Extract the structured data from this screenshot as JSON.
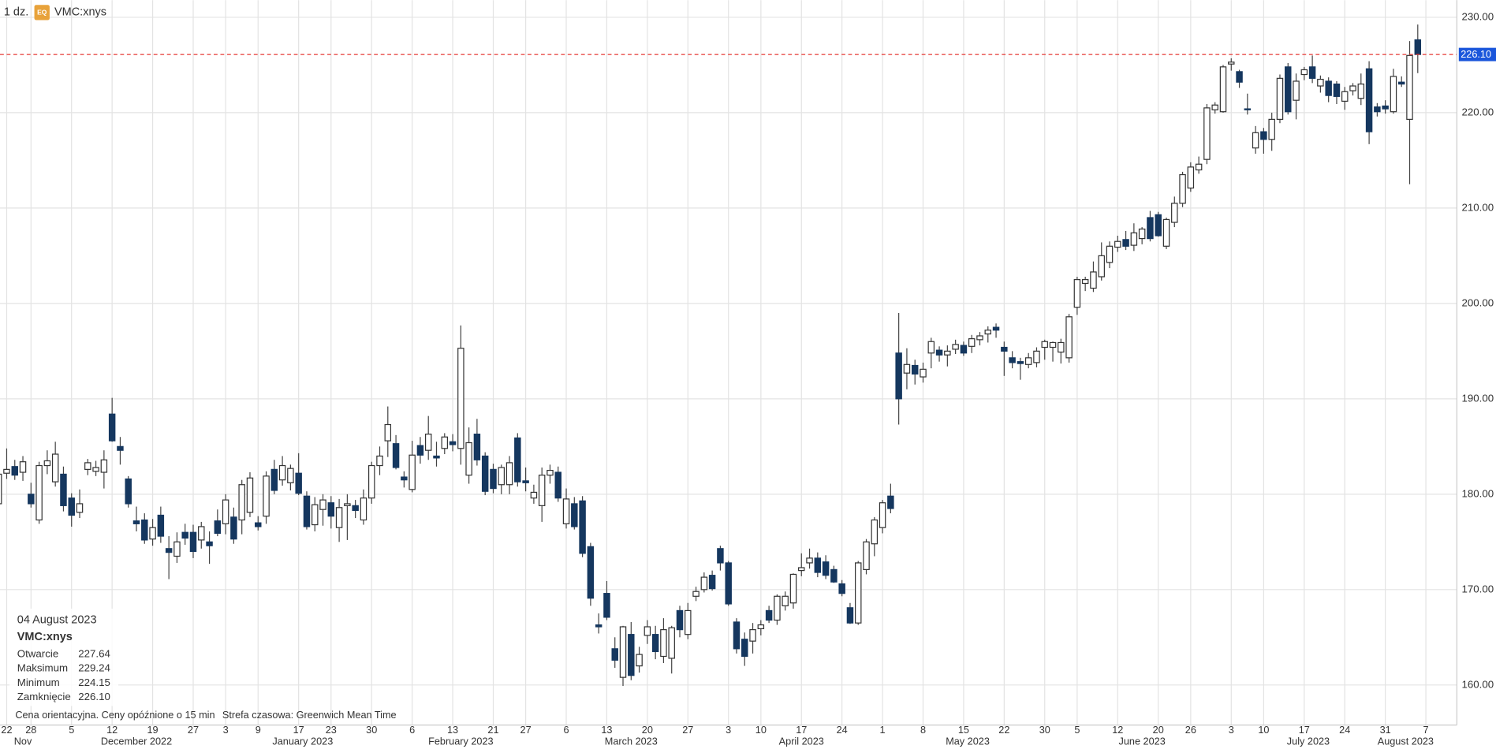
{
  "header": {
    "interval": "1 dz.",
    "badge": "EQ",
    "symbol": "VMC:xnys"
  },
  "info": {
    "date": "04 August 2023",
    "symbol": "VMC:xnys",
    "rows": [
      [
        "Otwarcie",
        "227.64"
      ],
      [
        "Maksimum",
        "229.24"
      ],
      [
        "Minimum",
        "224.15"
      ],
      [
        "Zamknięcie",
        "226.10"
      ]
    ]
  },
  "notes": [
    "Cena orientacyjna. Ceny opóźnione o 15 min",
    "Strefa czasowa: Greenwich Mean Time"
  ],
  "chart_data": {
    "type": "candlestick",
    "up_color": "#ffffff",
    "down_color": "#15375f",
    "grid": true,
    "ylim": [
      155.8,
      231.8
    ],
    "yticks": [
      {
        "value": 160,
        "label": "160.00"
      },
      {
        "value": 170,
        "label": "170.00"
      },
      {
        "value": 180,
        "label": "180.00"
      },
      {
        "value": 190,
        "label": "190.00"
      },
      {
        "value": 200,
        "label": "200.00"
      },
      {
        "value": 210,
        "label": "210.00"
      },
      {
        "value": 220,
        "label": "220.00"
      },
      {
        "value": 230,
        "label": "230.00"
      }
    ],
    "last_price": {
      "value": 226.1,
      "label": "226.10"
    },
    "xticks": [
      {
        "value": "2022-11-22",
        "label": "22"
      },
      {
        "value": "2022-11-28",
        "label": "28"
      },
      {
        "value": "2022-12-05",
        "label": "5"
      },
      {
        "value": "2022-12-12",
        "label": "12"
      },
      {
        "value": "2022-12-19",
        "label": "19"
      },
      {
        "value": "2022-12-27",
        "label": "27"
      },
      {
        "value": "2023-01-03",
        "label": "3"
      },
      {
        "value": "2023-01-09",
        "label": "9"
      },
      {
        "value": "2023-01-17",
        "label": "17"
      },
      {
        "value": "2023-01-23",
        "label": "23"
      },
      {
        "value": "2023-01-30",
        "label": "30"
      },
      {
        "value": "2023-02-06",
        "label": "6"
      },
      {
        "value": "2023-02-13",
        "label": "13"
      },
      {
        "value": "2023-02-21",
        "label": "21"
      },
      {
        "value": "2023-02-27",
        "label": "27"
      },
      {
        "value": "2023-03-06",
        "label": "6"
      },
      {
        "value": "2023-03-13",
        "label": "13"
      },
      {
        "value": "2023-03-20",
        "label": "20"
      },
      {
        "value": "2023-03-27",
        "label": "27"
      },
      {
        "value": "2023-04-03",
        "label": "3"
      },
      {
        "value": "2023-04-10",
        "label": "10"
      },
      {
        "value": "2023-04-17",
        "label": "17"
      },
      {
        "value": "2023-04-24",
        "label": "24"
      },
      {
        "value": "2023-05-01",
        "label": "1"
      },
      {
        "value": "2023-05-08",
        "label": "8"
      },
      {
        "value": "2023-05-15",
        "label": "15"
      },
      {
        "value": "2023-05-22",
        "label": "22"
      },
      {
        "value": "2023-05-30",
        "label": "30"
      },
      {
        "value": "2023-06-05",
        "label": "5"
      },
      {
        "value": "2023-06-12",
        "label": "12"
      },
      {
        "value": "2023-06-20",
        "label": "20"
      },
      {
        "value": "2023-06-26",
        "label": "26"
      },
      {
        "value": "2023-07-03",
        "label": "3"
      },
      {
        "value": "2023-07-10",
        "label": "10"
      },
      {
        "value": "2023-07-17",
        "label": "17"
      },
      {
        "value": "2023-07-24",
        "label": "24"
      },
      {
        "value": "2023-07-31",
        "label": "31"
      },
      {
        "value": "2023-08-07",
        "label": "7"
      }
    ],
    "month_labels": [
      {
        "value": "2022-11",
        "label": "Nov"
      },
      {
        "value": "2022-12",
        "label": "December 2022"
      },
      {
        "value": "2023-01",
        "label": "January 2023"
      },
      {
        "value": "2023-02",
        "label": "February 2023"
      },
      {
        "value": "2023-03",
        "label": "March 2023"
      },
      {
        "value": "2023-04",
        "label": "April 2023"
      },
      {
        "value": "2023-05",
        "label": "May 2023"
      },
      {
        "value": "2023-06",
        "label": "June 2023"
      },
      {
        "value": "2023-07",
        "label": "July 2023"
      },
      {
        "value": "2023-08",
        "label": "August 2023"
      }
    ],
    "x": [
      "2022-11-21",
      "2022-11-22",
      "2022-11-23",
      "2022-11-25",
      "2022-11-28",
      "2022-11-29",
      "2022-11-30",
      "2022-12-01",
      "2022-12-02",
      "2022-12-05",
      "2022-12-06",
      "2022-12-07",
      "2022-12-08",
      "2022-12-09",
      "2022-12-12",
      "2022-12-13",
      "2022-12-14",
      "2022-12-15",
      "2022-12-16",
      "2022-12-19",
      "2022-12-20",
      "2022-12-21",
      "2022-12-22",
      "2022-12-23",
      "2022-12-27",
      "2022-12-28",
      "2022-12-29",
      "2022-12-30",
      "2023-01-03",
      "2023-01-04",
      "2023-01-05",
      "2023-01-06",
      "2023-01-09",
      "2023-01-10",
      "2023-01-11",
      "2023-01-12",
      "2023-01-13",
      "2023-01-17",
      "2023-01-18",
      "2023-01-19",
      "2023-01-20",
      "2023-01-23",
      "2023-01-24",
      "2023-01-25",
      "2023-01-26",
      "2023-01-27",
      "2023-01-30",
      "2023-01-31",
      "2023-02-01",
      "2023-02-02",
      "2023-02-03",
      "2023-02-06",
      "2023-02-07",
      "2023-02-08",
      "2023-02-09",
      "2023-02-10",
      "2023-02-13",
      "2023-02-14",
      "2023-02-15",
      "2023-02-16",
      "2023-02-17",
      "2023-02-21",
      "2023-02-22",
      "2023-02-23",
      "2023-02-24",
      "2023-02-27",
      "2023-02-28",
      "2023-03-01",
      "2023-03-02",
      "2023-03-03",
      "2023-03-06",
      "2023-03-07",
      "2023-03-08",
      "2023-03-09",
      "2023-03-10",
      "2023-03-13",
      "2023-03-14",
      "2023-03-15",
      "2023-03-16",
      "2023-03-17",
      "2023-03-20",
      "2023-03-21",
      "2023-03-22",
      "2023-03-23",
      "2023-03-24",
      "2023-03-27",
      "2023-03-28",
      "2023-03-29",
      "2023-03-30",
      "2023-03-31",
      "2023-04-03",
      "2023-04-04",
      "2023-04-05",
      "2023-04-06",
      "2023-04-10",
      "2023-04-11",
      "2023-04-12",
      "2023-04-13",
      "2023-04-14",
      "2023-04-17",
      "2023-04-18",
      "2023-04-19",
      "2023-04-20",
      "2023-04-21",
      "2023-04-24",
      "2023-04-25",
      "2023-04-26",
      "2023-04-27",
      "2023-04-28",
      "2023-05-01",
      "2023-05-02",
      "2023-05-03",
      "2023-05-04",
      "2023-05-05",
      "2023-05-08",
      "2023-05-09",
      "2023-05-10",
      "2023-05-11",
      "2023-05-12",
      "2023-05-15",
      "2023-05-16",
      "2023-05-17",
      "2023-05-18",
      "2023-05-19",
      "2023-05-22",
      "2023-05-23",
      "2023-05-24",
      "2023-05-25",
      "2023-05-26",
      "2023-05-30",
      "2023-05-31",
      "2023-06-01",
      "2023-06-02",
      "2023-06-05",
      "2023-06-06",
      "2023-06-07",
      "2023-06-08",
      "2023-06-09",
      "2023-06-12",
      "2023-06-13",
      "2023-06-14",
      "2023-06-15",
      "2023-06-16",
      "2023-06-20",
      "2023-06-21",
      "2023-06-22",
      "2023-06-23",
      "2023-06-26",
      "2023-06-27",
      "2023-06-28",
      "2023-06-29",
      "2023-06-30",
      "2023-07-03",
      "2023-07-05",
      "2023-07-06",
      "2023-07-07",
      "2023-07-10",
      "2023-07-11",
      "2023-07-12",
      "2023-07-13",
      "2023-07-14",
      "2023-07-17",
      "2023-07-18",
      "2023-07-19",
      "2023-07-20",
      "2023-07-21",
      "2023-07-24",
      "2023-07-25",
      "2023-07-26",
      "2023-07-27",
      "2023-07-28",
      "2023-07-31",
      "2023-08-01",
      "2023-08-02",
      "2023-08-03",
      "2023-08-04"
    ],
    "open": [
      179.0,
      182.2,
      182.9,
      182.3,
      180.0,
      177.3,
      183.0,
      181.3,
      182.1,
      179.6,
      178.1,
      182.6,
      182.4,
      182.3,
      188.4,
      185.0,
      181.6,
      177.2,
      177.3,
      175.3,
      177.8,
      174.3,
      173.5,
      176.0,
      176.0,
      175.2,
      175.0,
      177.2,
      176.9,
      177.6,
      177.3,
      178.1,
      177.0,
      177.7,
      182.6,
      181.5,
      181.2,
      182.2,
      179.8,
      176.8,
      178.4,
      179.1,
      176.5,
      178.8,
      178.8,
      177.3,
      179.6,
      183.0,
      185.6,
      185.3,
      181.8,
      180.5,
      185.1,
      184.6,
      184.0,
      184.8,
      185.5,
      184.8,
      182.0,
      186.3,
      184.0,
      182.6,
      181.0,
      181.0,
      185.9,
      181.4,
      179.6,
      178.8,
      182.0,
      182.3,
      176.9,
      179.0,
      179.3,
      174.5,
      166.3,
      169.6,
      163.8,
      160.8,
      165.3,
      162.0,
      165.2,
      165.3,
      163.0,
      162.8,
      167.8,
      165.3,
      169.3,
      170.0,
      171.5,
      174.3,
      172.8,
      166.6,
      164.8,
      164.6,
      165.9,
      167.8,
      166.8,
      168.3,
      168.6,
      172.0,
      172.8,
      173.3,
      172.9,
      172.1,
      170.6,
      168.1,
      166.5,
      172.1,
      174.8,
      176.5,
      179.8,
      194.8,
      192.7,
      193.5,
      192.3,
      194.8,
      195.1,
      194.6,
      195.2,
      195.6,
      195.5,
      196.2,
      196.8,
      197.5,
      195.4,
      194.3,
      193.9,
      193.6,
      193.8,
      195.4,
      195.4,
      194.9,
      194.3,
      199.6,
      202.1,
      201.6,
      202.8,
      204.3,
      205.9,
      206.7,
      206.1,
      206.8,
      209.0,
      209.3,
      206.0,
      208.5,
      210.5,
      212.1,
      214.0,
      215.1,
      220.3,
      220.1,
      225.1,
      224.3,
      220.4,
      216.3,
      218.0,
      217.2,
      219.3,
      224.8,
      221.3,
      224.0,
      224.8,
      222.8,
      223.3,
      223.0,
      221.2,
      222.3,
      221.5,
      224.6,
      220.6,
      220.7,
      220.1,
      223.2,
      219.3,
      227.64
    ],
    "high": [
      183.0,
      184.8,
      183.6,
      184.0,
      181.2,
      183.4,
      184.6,
      185.5,
      182.9,
      180.1,
      180.5,
      183.7,
      183.5,
      184.6,
      190.1,
      186.0,
      181.9,
      178.7,
      178.0,
      177.4,
      178.7,
      175.6,
      176.0,
      176.9,
      176.8,
      177.1,
      176.1,
      178.4,
      180.0,
      178.6,
      181.5,
      182.3,
      177.7,
      182.4,
      183.6,
      184.0,
      183.1,
      184.3,
      180.3,
      179.7,
      180.0,
      179.8,
      179.5,
      180.0,
      179.4,
      180.5,
      183.4,
      185.0,
      189.2,
      186.2,
      182.4,
      185.6,
      186.0,
      188.2,
      185.5,
      186.4,
      186.3,
      197.7,
      187.0,
      187.9,
      184.4,
      183.2,
      183.1,
      184.0,
      186.4,
      182.8,
      181.0,
      182.8,
      183.1,
      182.9,
      180.6,
      179.7,
      179.8,
      174.9,
      167.5,
      170.9,
      165.0,
      166.2,
      166.6,
      164.0,
      166.8,
      166.2,
      167.0,
      166.2,
      168.3,
      168.6,
      170.3,
      171.8,
      172.0,
      174.6,
      173.0,
      167.0,
      165.5,
      166.5,
      166.8,
      168.3,
      169.5,
      169.8,
      171.7,
      173.8,
      174.3,
      173.9,
      173.6,
      172.5,
      171.0,
      168.6,
      173.0,
      175.3,
      177.6,
      179.4,
      181.1,
      199.0,
      195.3,
      194.1,
      193.8,
      196.4,
      195.5,
      195.6,
      196.2,
      196.0,
      196.7,
      197.0,
      197.6,
      197.9,
      196.0,
      195.0,
      194.3,
      194.8,
      195.4,
      196.2,
      196.0,
      196.3,
      198.9,
      202.8,
      202.8,
      204.4,
      206.4,
      206.5,
      207.1,
      207.6,
      208.4,
      208.0,
      209.7,
      209.6,
      209.0,
      211.2,
      213.8,
      214.8,
      215.4,
      220.9,
      221.1,
      225.0,
      225.7,
      224.5,
      222.0,
      218.6,
      218.4,
      220.0,
      224.0,
      225.2,
      224.1,
      224.8,
      226.0,
      223.9,
      223.7,
      223.3,
      222.7,
      223.1,
      224.1,
      225.4,
      221.0,
      221.3,
      224.6,
      223.8,
      227.5,
      229.24
    ],
    "low": [
      178.3,
      181.6,
      181.5,
      181.4,
      178.6,
      176.9,
      182.1,
      180.8,
      178.2,
      176.6,
      177.5,
      182.0,
      181.9,
      180.6,
      185.5,
      183.1,
      178.6,
      176.1,
      174.8,
      174.6,
      174.9,
      171.1,
      172.8,
      174.7,
      173.3,
      174.3,
      172.7,
      175.6,
      175.8,
      174.8,
      175.8,
      177.6,
      176.2,
      176.9,
      180.0,
      180.9,
      180.4,
      179.9,
      176.3,
      176.1,
      176.7,
      176.4,
      175.0,
      175.2,
      177.5,
      176.8,
      179.0,
      182.0,
      183.9,
      182.6,
      180.7,
      180.2,
      183.2,
      183.6,
      182.9,
      184.2,
      184.5,
      183.1,
      181.1,
      183.0,
      179.9,
      180.1,
      180.0,
      180.0,
      180.8,
      180.3,
      179.0,
      177.1,
      181.1,
      179.2,
      176.4,
      176.3,
      173.4,
      168.3,
      165.4,
      166.8,
      161.8,
      159.9,
      160.5,
      161.3,
      164.3,
      162.7,
      162.3,
      161.2,
      165.0,
      164.8,
      168.8,
      169.7,
      169.9,
      172.0,
      168.3,
      163.3,
      162.0,
      163.3,
      165.2,
      166.5,
      166.3,
      167.8,
      168.0,
      171.4,
      172.2,
      171.3,
      171.1,
      170.7,
      169.3,
      166.4,
      166.3,
      171.6,
      173.5,
      175.9,
      178.0,
      187.3,
      191.0,
      191.5,
      191.7,
      193.2,
      193.9,
      193.4,
      194.7,
      194.5,
      194.8,
      195.6,
      195.9,
      196.4,
      192.4,
      193.2,
      192.0,
      193.2,
      193.3,
      194.1,
      193.9,
      193.7,
      193.8,
      198.8,
      201.3,
      201.2,
      202.4,
      203.7,
      205.4,
      205.6,
      205.5,
      206.2,
      206.5,
      207.0,
      205.7,
      208.0,
      210.1,
      211.7,
      213.6,
      214.6,
      219.9,
      220.0,
      224.4,
      222.6,
      219.8,
      215.7,
      215.7,
      216.0,
      218.9,
      219.8,
      219.3,
      223.4,
      223.1,
      222.1,
      221.1,
      220.9,
      220.3,
      221.8,
      220.8,
      216.7,
      219.6,
      219.9,
      219.9,
      222.7,
      212.5,
      224.15
    ],
    "close": [
      182.1,
      182.6,
      182.0,
      183.4,
      179.0,
      183.0,
      183.5,
      184.2,
      178.8,
      177.8,
      179.0,
      183.3,
      182.8,
      183.6,
      185.6,
      184.6,
      179.0,
      176.9,
      175.2,
      176.5,
      175.6,
      173.9,
      175.0,
      175.4,
      174.0,
      176.6,
      174.6,
      175.9,
      179.4,
      175.3,
      181.0,
      181.7,
      176.6,
      181.9,
      180.4,
      183.0,
      182.7,
      180.1,
      176.6,
      178.9,
      179.4,
      177.7,
      178.6,
      179.0,
      178.3,
      179.6,
      183.0,
      184.0,
      187.3,
      182.8,
      181.5,
      184.1,
      184.1,
      186.3,
      183.8,
      186.0,
      185.2,
      195.3,
      185.4,
      183.6,
      180.3,
      180.6,
      182.8,
      183.3,
      181.3,
      181.2,
      180.2,
      182.0,
      182.5,
      179.6,
      179.5,
      176.6,
      173.8,
      169.1,
      166.1,
      167.1,
      162.6,
      166.1,
      161.0,
      163.2,
      166.1,
      163.5,
      165.8,
      166.0,
      165.8,
      167.8,
      169.8,
      171.3,
      170.1,
      172.8,
      168.5,
      163.8,
      163.0,
      165.8,
      166.3,
      166.8,
      169.3,
      169.3,
      171.6,
      172.3,
      173.3,
      171.8,
      171.5,
      170.8,
      169.6,
      166.5,
      172.8,
      175.0,
      177.3,
      179.1,
      178.5,
      190.0,
      193.6,
      192.6,
      193.1,
      196.0,
      194.6,
      195.0,
      195.7,
      194.8,
      196.3,
      196.6,
      197.2,
      197.2,
      195.0,
      193.8,
      193.7,
      194.3,
      195.0,
      196.0,
      195.9,
      195.9,
      198.6,
      202.5,
      202.5,
      203.3,
      205.0,
      206.0,
      206.5,
      206.0,
      207.4,
      207.8,
      206.8,
      207.1,
      208.8,
      210.5,
      213.5,
      214.3,
      214.6,
      220.5,
      220.8,
      224.8,
      225.3,
      223.2,
      220.3,
      217.9,
      217.2,
      219.3,
      223.6,
      220.1,
      223.3,
      224.5,
      223.6,
      223.5,
      221.8,
      221.7,
      222.2,
      222.8,
      223.0,
      218.0,
      220.1,
      220.4,
      223.8,
      223.0,
      226.0,
      226.1
    ]
  }
}
